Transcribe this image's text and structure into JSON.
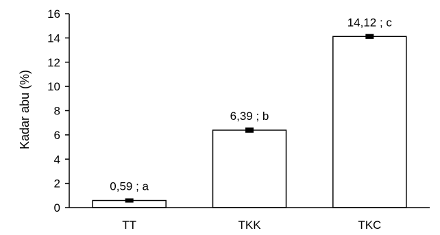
{
  "chart_data": {
    "type": "bar",
    "categories": [
      "TT",
      "TKK",
      "TKC"
    ],
    "values": [
      0.59,
      6.39,
      14.12
    ],
    "errors": [
      0.06,
      0.1,
      0.09
    ],
    "data_labels": [
      "0,59 ; a",
      "6,39 ; b",
      "14,12 ; c"
    ],
    "title": "",
    "xlabel": "",
    "ylabel": "Kadar abu (%)",
    "ylim": [
      0,
      16
    ],
    "yticks": [
      0,
      2,
      4,
      6,
      8,
      10,
      12,
      14,
      16
    ],
    "ytick_labels": [
      "0",
      "2",
      "4",
      "6",
      "8",
      "10",
      "12",
      "14",
      "16"
    ],
    "grid": false,
    "legend": "none",
    "colors": {
      "bar_fill": "#ffffff",
      "bar_stroke": "#000000",
      "axis": "#000000"
    }
  }
}
